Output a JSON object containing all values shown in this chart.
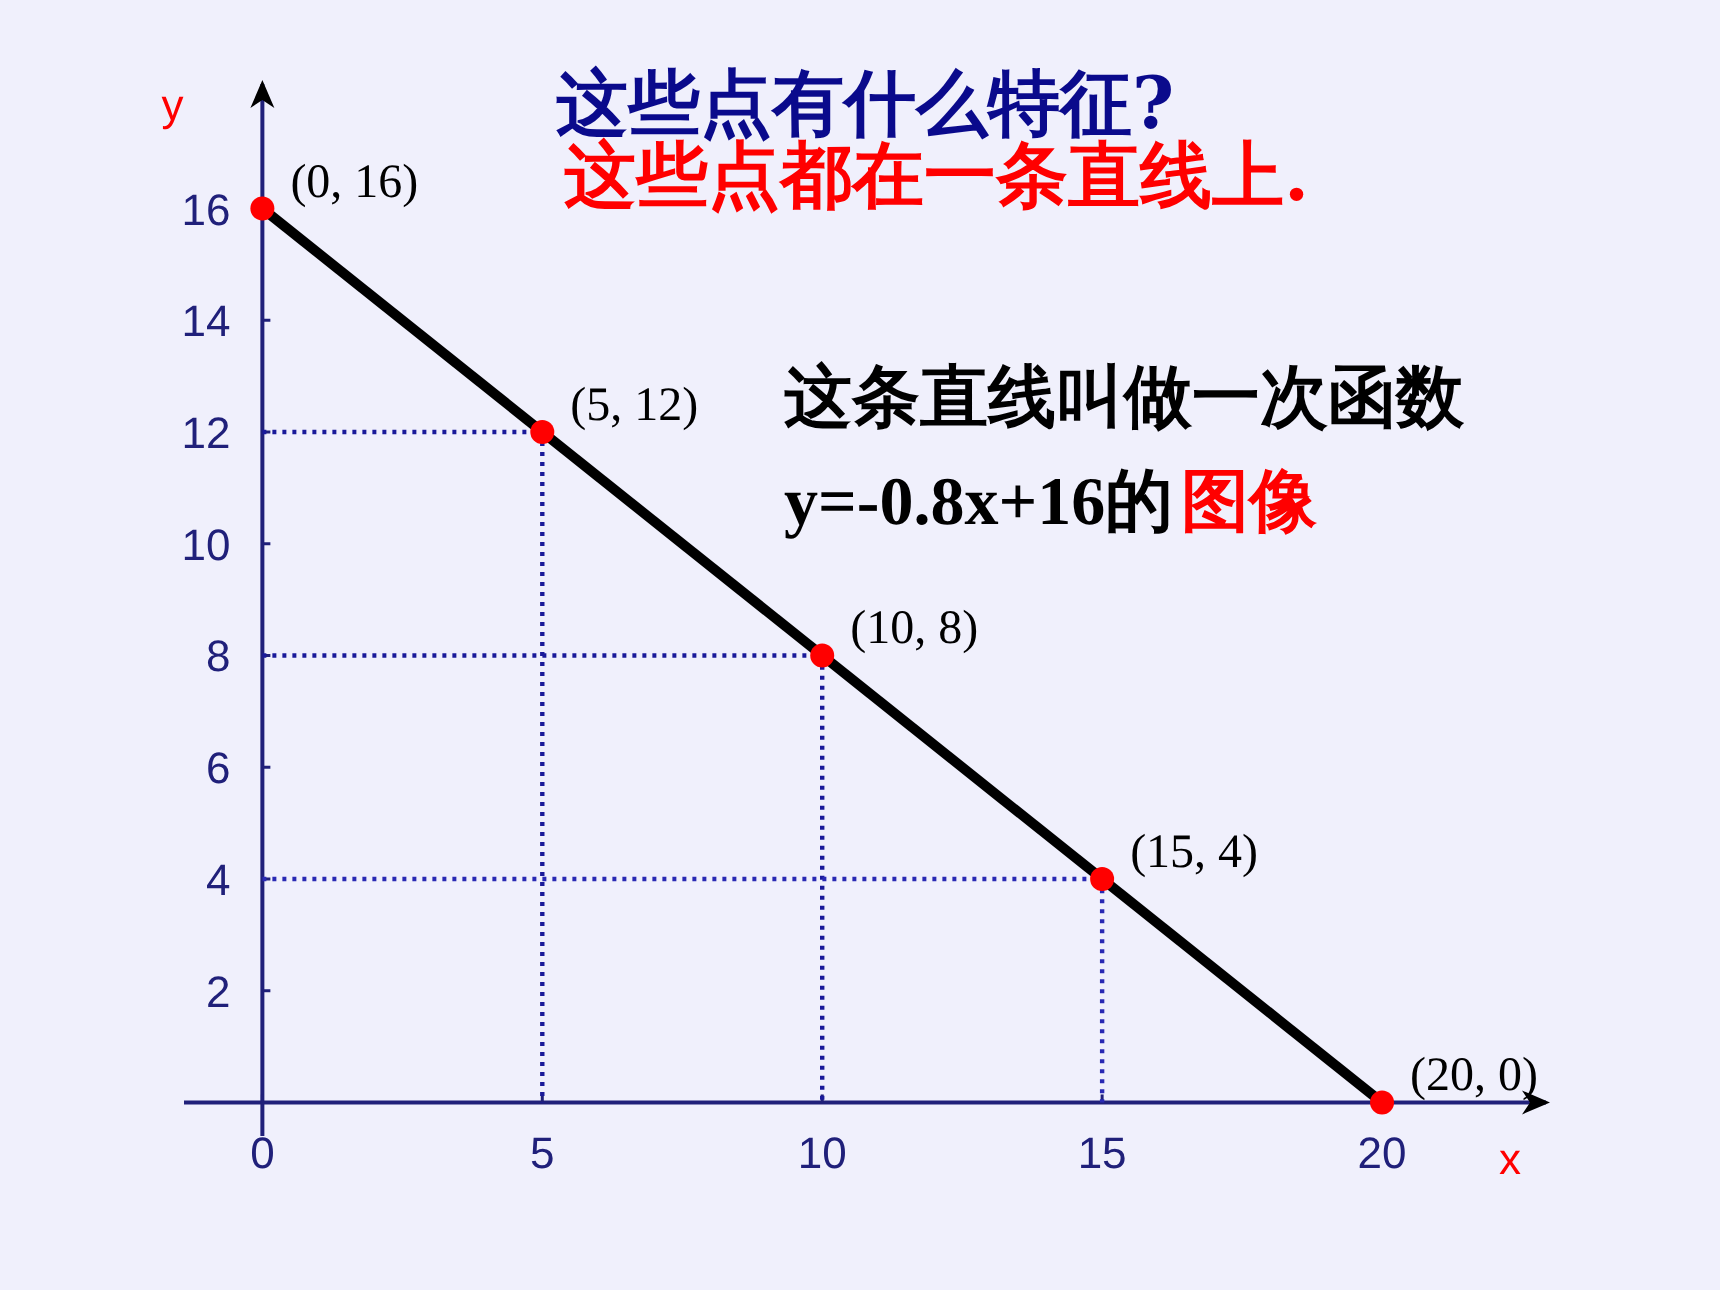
{
  "chart_data": {
    "type": "line",
    "title": "这些点有什么特征?",
    "subtitle": "这些点都在一条直线上.",
    "xlabel": "x",
    "ylabel": "y",
    "xlim": [
      -1.4,
      23
    ],
    "ylim": [
      -0.6,
      18.3
    ],
    "xticks": [
      0,
      5,
      10,
      15,
      20
    ],
    "yticks": [
      2,
      4,
      6,
      8,
      10,
      12,
      14,
      16
    ],
    "grid": false,
    "series": [
      {
        "type": "line",
        "color": "#1a1a9a",
        "line_style": "dotted",
        "marker": "none",
        "x": [
          0,
          5,
          5
        ],
        "values": [
          12,
          12,
          0
        ]
      },
      {
        "type": "line",
        "color": "#1a1a9a",
        "line_style": "dotted",
        "marker": "none",
        "x": [
          0,
          10,
          10
        ],
        "values": [
          8,
          8,
          0
        ]
      },
      {
        "type": "line",
        "color": "#2a2ab4",
        "line_style": "dotted",
        "marker": "none",
        "x": [
          0,
          15,
          15
        ],
        "values": [
          4,
          4,
          0
        ]
      },
      {
        "type": "line",
        "color": "#000000",
        "line_style": "solid",
        "marker": "none",
        "x": [
          0,
          20
        ],
        "values": [
          16,
          0
        ]
      },
      {
        "type": "scatter",
        "color": "#ff0000",
        "marker": "circle",
        "x": [
          0,
          5,
          10,
          15,
          20
        ],
        "values": [
          16,
          12,
          8,
          4,
          0
        ],
        "value_labels": [
          "(0, 16)",
          "(5, 12)",
          "(10, 8)",
          "(15, 4)",
          "(20, 0)"
        ]
      }
    ],
    "annotations": [
      "这条直线叫做一次函数",
      "y=-0.8x+16的",
      "图像"
    ]
  }
}
